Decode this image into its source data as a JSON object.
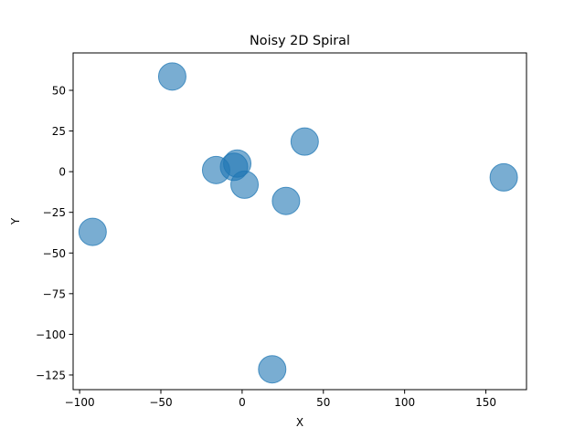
{
  "chart_data": {
    "type": "scatter",
    "title": "Noisy 2D Spiral",
    "xlabel": "X",
    "ylabel": "Y",
    "xlim": [
      -104,
      175
    ],
    "ylim": [
      -134,
      73
    ],
    "xticks": [
      -100,
      -50,
      0,
      50,
      100,
      150
    ],
    "yticks": [
      -125,
      -100,
      -75,
      -50,
      -25,
      0,
      25,
      50
    ],
    "xtick_labels": [
      "−100",
      "−50",
      "0",
      "50",
      "100",
      "150"
    ],
    "ytick_labels": [
      "−125",
      "−100",
      "−75",
      "−50",
      "−25",
      "0",
      "25",
      "50"
    ],
    "grid": false,
    "marker_color": "#1f77b4",
    "marker_alpha": 0.6,
    "points": [
      {
        "x": -43,
        "y": 58.5
      },
      {
        "x": -16,
        "y": 1
      },
      {
        "x": -5,
        "y": 3
      },
      {
        "x": -3,
        "y": 5
      },
      {
        "x": 1.5,
        "y": -8
      },
      {
        "x": 27,
        "y": -18
      },
      {
        "x": 38.5,
        "y": 18.5
      },
      {
        "x": -92,
        "y": -37
      },
      {
        "x": 18.5,
        "y": -121.5
      },
      {
        "x": 161,
        "y": -3.5
      }
    ]
  }
}
